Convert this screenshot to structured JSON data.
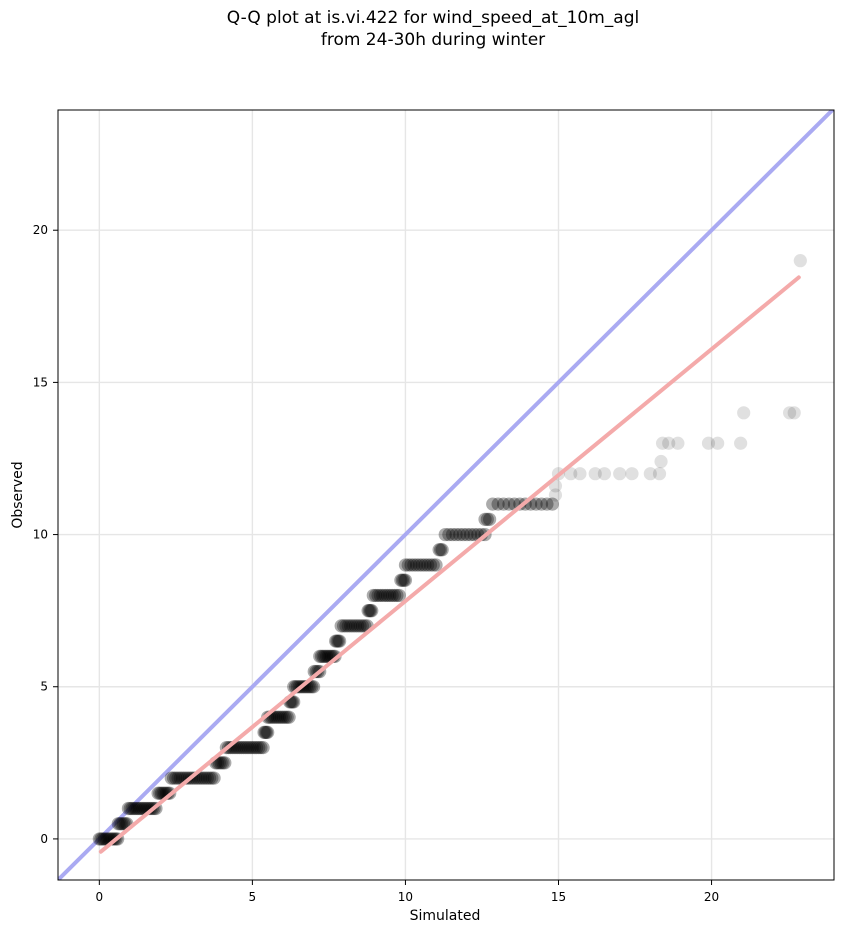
{
  "chart_data": {
    "type": "scatter",
    "title": "Q-Q plot at is.vi.422 for wind_speed_at_10m_agl",
    "subtitle": "from 24-30h during winter",
    "xlabel": "Simulated",
    "ylabel": "Observed",
    "xlim": [
      -1.35,
      24.0
    ],
    "ylim": [
      -1.35,
      23.95
    ],
    "xticks": [
      0,
      5,
      10,
      15,
      20
    ],
    "yticks": [
      0,
      5,
      10,
      15,
      20
    ],
    "grid": true,
    "reference_line": {
      "label": "",
      "color": "#aaaaf2",
      "points": [
        [
          -1.35,
          -1.35
        ],
        [
          24.0,
          24.0
        ]
      ]
    },
    "fit_line": {
      "label": "",
      "color": "#f4aaaa",
      "points": [
        [
          0.05,
          -0.42
        ],
        [
          22.85,
          18.45
        ]
      ]
    },
    "scatter_color": "#000000",
    "segments": [
      {
        "y": 0,
        "x_start": 0.0,
        "x_end": 0.6,
        "count": 12
      },
      {
        "y": 0.5,
        "x_start": 0.62,
        "x_end": 0.9,
        "count": 6
      },
      {
        "y": 1,
        "x_start": 0.95,
        "x_end": 1.85,
        "count": 16
      },
      {
        "y": 1.5,
        "x_start": 1.92,
        "x_end": 2.3,
        "count": 8
      },
      {
        "y": 2,
        "x_start": 2.35,
        "x_end": 3.75,
        "count": 20
      },
      {
        "y": 2.5,
        "x_start": 3.8,
        "x_end": 4.1,
        "count": 6
      },
      {
        "y": 3,
        "x_start": 4.15,
        "x_end": 5.35,
        "count": 18
      },
      {
        "y": 3.5,
        "x_start": 5.38,
        "x_end": 5.5,
        "count": 4
      },
      {
        "y": 4,
        "x_start": 5.5,
        "x_end": 6.2,
        "count": 12
      },
      {
        "y": 4.5,
        "x_start": 6.22,
        "x_end": 6.35,
        "count": 4
      },
      {
        "y": 5,
        "x_start": 6.35,
        "x_end": 7.0,
        "count": 12
      },
      {
        "y": 5.5,
        "x_start": 7.02,
        "x_end": 7.2,
        "count": 4
      },
      {
        "y": 6,
        "x_start": 7.2,
        "x_end": 7.7,
        "count": 10
      },
      {
        "y": 6.5,
        "x_start": 7.72,
        "x_end": 7.85,
        "count": 4
      },
      {
        "y": 7,
        "x_start": 7.9,
        "x_end": 8.75,
        "count": 12
      },
      {
        "y": 7.5,
        "x_start": 8.78,
        "x_end": 8.9,
        "count": 4
      },
      {
        "y": 8,
        "x_start": 8.95,
        "x_end": 9.8,
        "count": 12
      },
      {
        "y": 8.5,
        "x_start": 9.85,
        "x_end": 10.0,
        "count": 4
      },
      {
        "y": 9,
        "x_start": 10.0,
        "x_end": 11.0,
        "count": 12
      },
      {
        "y": 9.5,
        "x_start": 11.1,
        "x_end": 11.2,
        "count": 3
      },
      {
        "y": 10,
        "x_start": 11.3,
        "x_end": 12.6,
        "count": 12
      },
      {
        "y": 10.5,
        "x_start": 12.6,
        "x_end": 12.75,
        "count": 3
      },
      {
        "y": 11,
        "x_start": 12.85,
        "x_end": 14.8,
        "count": 12
      }
    ],
    "points": [
      {
        "x": 14.9,
        "y": 11.3
      },
      {
        "x": 14.9,
        "y": 11.6
      },
      {
        "x": 15.0,
        "y": 12
      },
      {
        "x": 15.4,
        "y": 12
      },
      {
        "x": 15.7,
        "y": 12
      },
      {
        "x": 16.2,
        "y": 12
      },
      {
        "x": 16.5,
        "y": 12
      },
      {
        "x": 17.0,
        "y": 12
      },
      {
        "x": 17.4,
        "y": 12
      },
      {
        "x": 18.0,
        "y": 12
      },
      {
        "x": 18.3,
        "y": 12
      },
      {
        "x": 18.35,
        "y": 12.4
      },
      {
        "x": 18.4,
        "y": 13
      },
      {
        "x": 18.6,
        "y": 13
      },
      {
        "x": 18.9,
        "y": 13
      },
      {
        "x": 19.9,
        "y": 13
      },
      {
        "x": 20.2,
        "y": 13
      },
      {
        "x": 20.95,
        "y": 13
      },
      {
        "x": 21.05,
        "y": 14
      },
      {
        "x": 22.55,
        "y": 14
      },
      {
        "x": 22.7,
        "y": 14
      },
      {
        "x": 22.9,
        "y": 19
      }
    ]
  }
}
